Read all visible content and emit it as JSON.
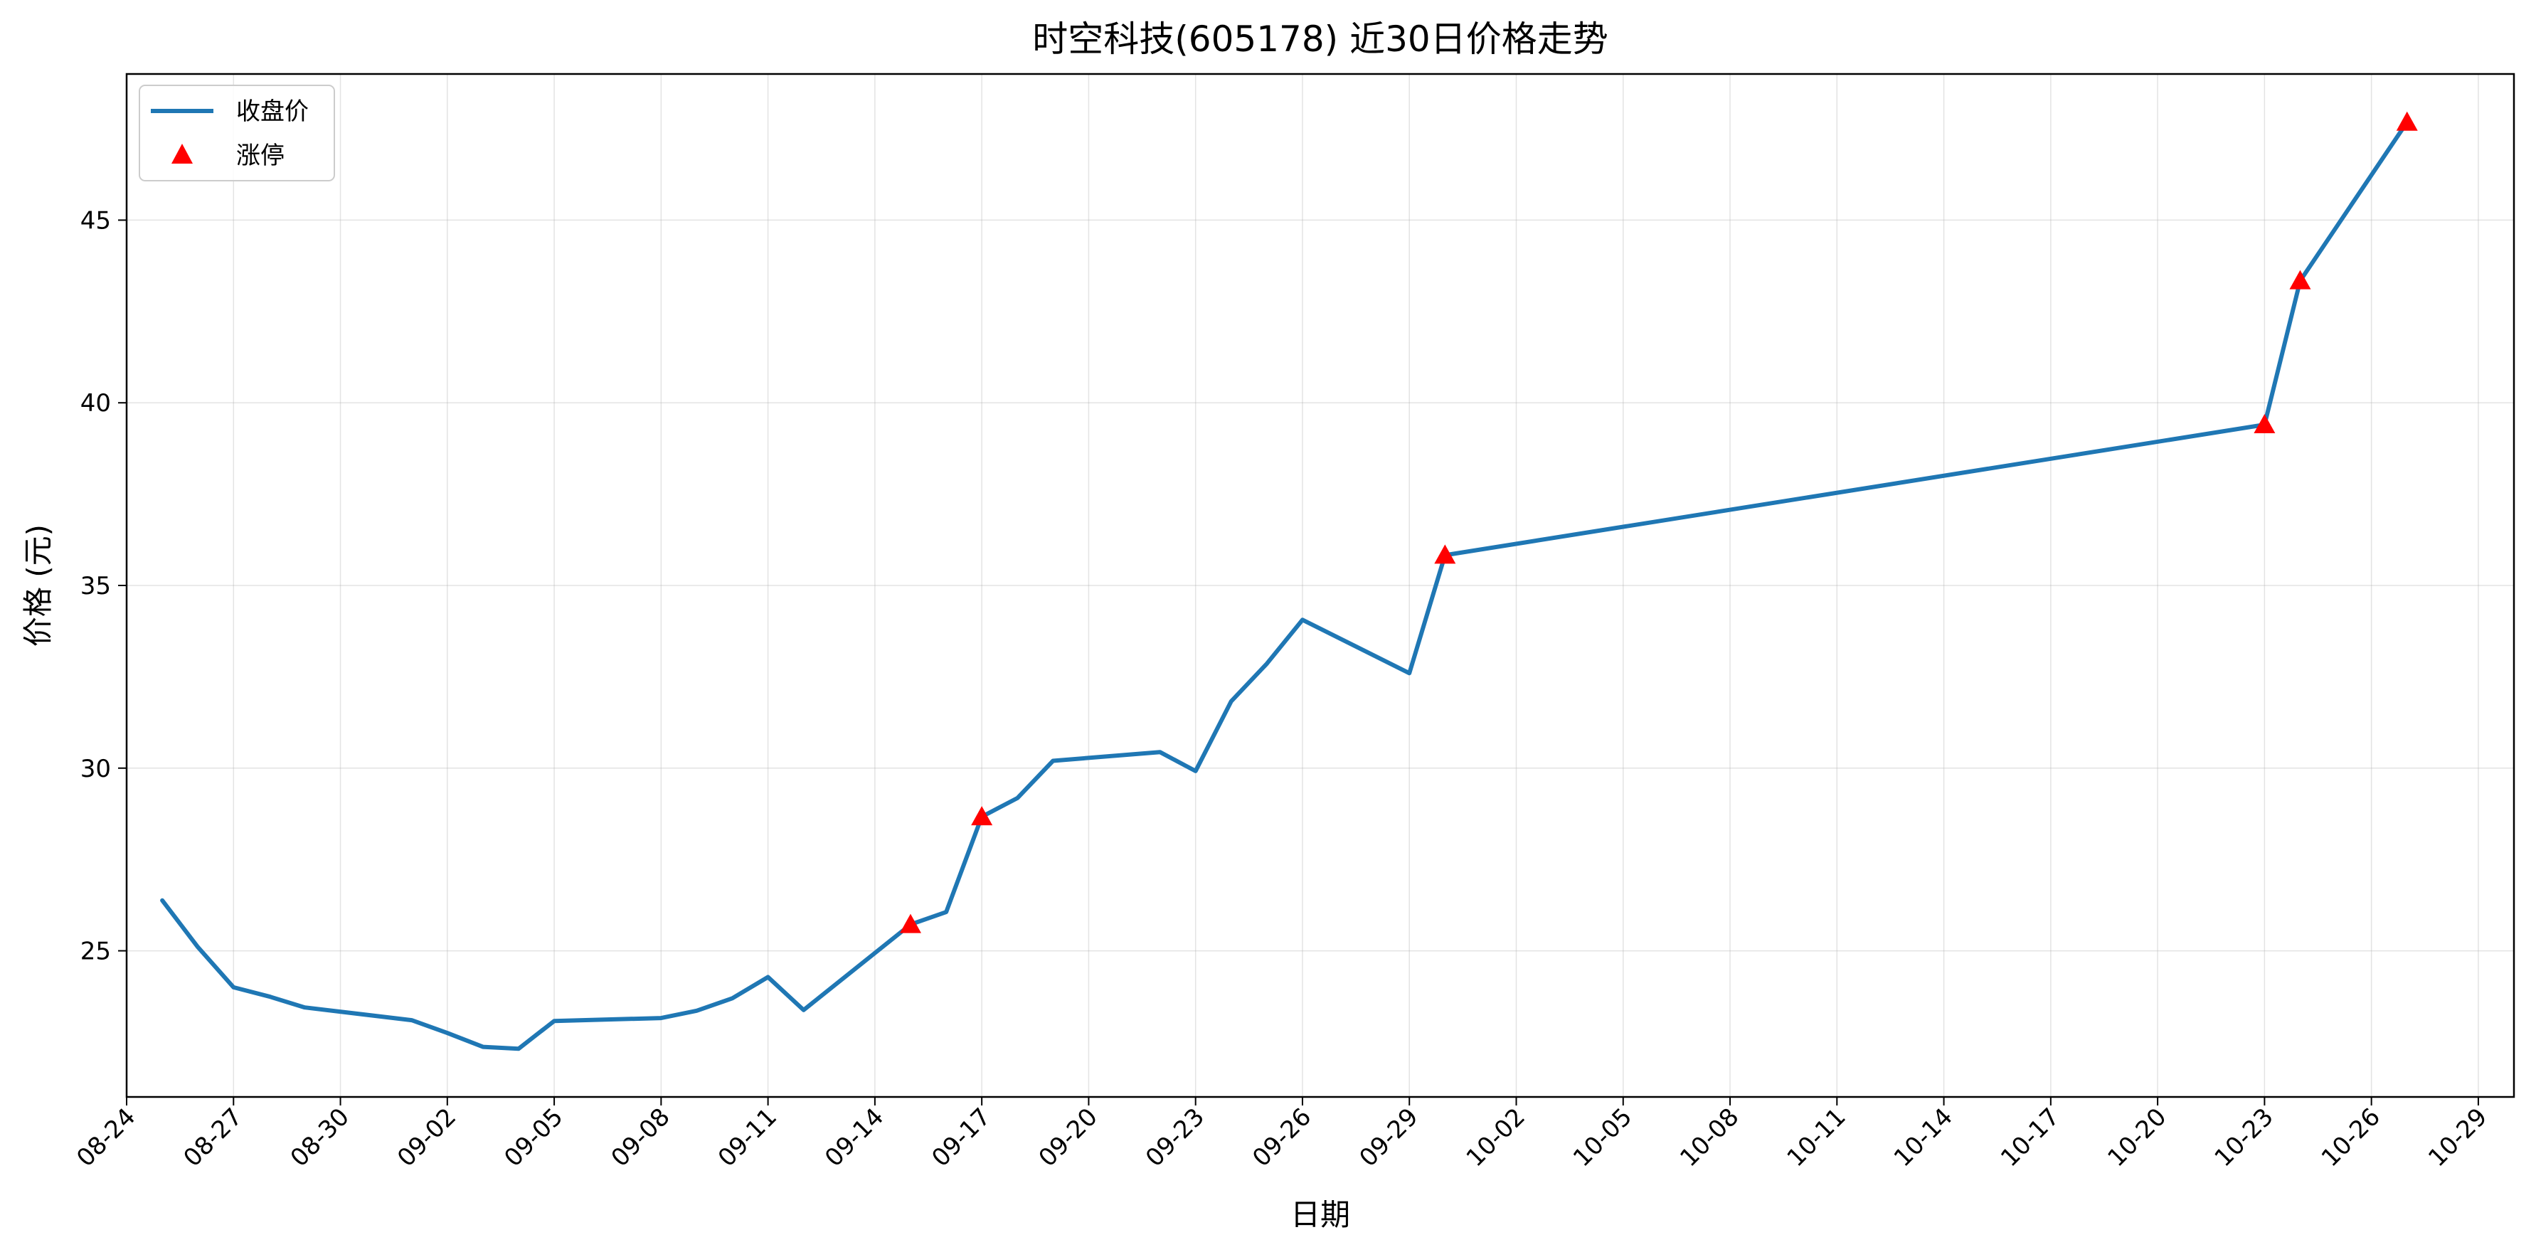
{
  "chart_data": {
    "type": "line",
    "title": "时空科技(605178) 近30日价格走势",
    "xlabel": "日期",
    "ylabel": "价格 (元)",
    "xlim": [
      "2025-08-24",
      "2025-10-30"
    ],
    "ylim": [
      21.0,
      49.0
    ],
    "grid": true,
    "legend_position": "top-left",
    "x_tick_labels": [
      "08-24",
      "08-27",
      "08-30",
      "09-02",
      "09-05",
      "09-08",
      "09-11",
      "09-14",
      "09-17",
      "09-20",
      "09-23",
      "09-26",
      "09-29",
      "10-02",
      "10-05",
      "10-08",
      "10-11",
      "10-14",
      "10-17",
      "10-20",
      "10-23",
      "10-26",
      "10-29"
    ],
    "x_tick_dates": [
      "2025-08-24",
      "2025-08-27",
      "2025-08-30",
      "2025-09-02",
      "2025-09-05",
      "2025-09-08",
      "2025-09-11",
      "2025-09-14",
      "2025-09-17",
      "2025-09-20",
      "2025-09-23",
      "2025-09-26",
      "2025-09-29",
      "2025-10-02",
      "2025-10-05",
      "2025-10-08",
      "2025-10-11",
      "2025-10-14",
      "2025-10-17",
      "2025-10-20",
      "2025-10-23",
      "2025-10-26",
      "2025-10-29"
    ],
    "y_ticks": [
      25,
      30,
      35,
      40,
      45
    ],
    "series": [
      {
        "name": "收盘价",
        "color": "#1f77b4",
        "points": [
          {
            "x": "2025-08-25",
            "y": 26.38
          },
          {
            "x": "2025-08-26",
            "y": 25.1
          },
          {
            "x": "2025-08-27",
            "y": 24.0
          },
          {
            "x": "2025-08-28",
            "y": 23.75
          },
          {
            "x": "2025-08-29",
            "y": 23.45
          },
          {
            "x": "2025-09-01",
            "y": 23.1
          },
          {
            "x": "2025-09-02",
            "y": 22.75
          },
          {
            "x": "2025-09-03",
            "y": 22.37
          },
          {
            "x": "2025-09-04",
            "y": 22.32
          },
          {
            "x": "2025-09-05",
            "y": 23.08
          },
          {
            "x": "2025-09-08",
            "y": 23.16
          },
          {
            "x": "2025-09-09",
            "y": 23.36
          },
          {
            "x": "2025-09-10",
            "y": 23.7
          },
          {
            "x": "2025-09-11",
            "y": 24.28
          },
          {
            "x": "2025-09-12",
            "y": 23.38
          },
          {
            "x": "2025-09-15",
            "y": 25.72
          },
          {
            "x": "2025-09-16",
            "y": 26.06
          },
          {
            "x": "2025-09-17",
            "y": 28.67
          },
          {
            "x": "2025-09-18",
            "y": 29.18
          },
          {
            "x": "2025-09-19",
            "y": 30.2
          },
          {
            "x": "2025-09-22",
            "y": 30.44
          },
          {
            "x": "2025-09-23",
            "y": 29.92
          },
          {
            "x": "2025-09-24",
            "y": 31.83
          },
          {
            "x": "2025-09-25",
            "y": 32.86
          },
          {
            "x": "2025-09-26",
            "y": 34.06
          },
          {
            "x": "2025-09-29",
            "y": 32.6
          },
          {
            "x": "2025-09-30",
            "y": 35.83
          },
          {
            "x": "2025-10-23",
            "y": 39.4
          },
          {
            "x": "2025-10-24",
            "y": 43.34
          },
          {
            "x": "2025-10-27",
            "y": 47.68
          }
        ]
      },
      {
        "name": "涨停",
        "color": "#ff0000",
        "marker": "triangle",
        "points": [
          {
            "x": "2025-09-15",
            "y": 25.72
          },
          {
            "x": "2025-09-17",
            "y": 28.67
          },
          {
            "x": "2025-09-30",
            "y": 35.83
          },
          {
            "x": "2025-10-23",
            "y": 39.4
          },
          {
            "x": "2025-10-24",
            "y": 43.34
          },
          {
            "x": "2025-10-27",
            "y": 47.68
          }
        ]
      }
    ]
  }
}
